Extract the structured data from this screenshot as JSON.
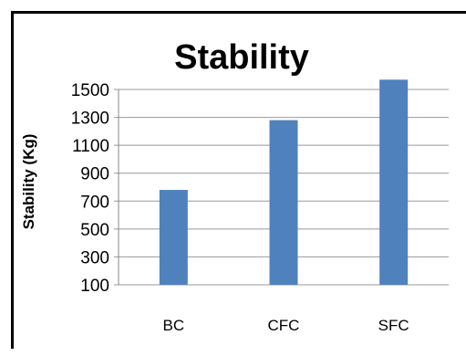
{
  "chart_data": {
    "type": "bar",
    "title": "Stability",
    "xlabel": "",
    "ylabel": "Stability (Kg)",
    "categories": [
      "BC",
      "CFC",
      "SFC"
    ],
    "values": [
      780,
      1280,
      1570
    ],
    "ylim": [
      100,
      1500
    ],
    "yticks": [
      1500,
      1300,
      1100,
      900,
      700,
      500,
      300,
      100
    ],
    "grid": true,
    "legend": "none",
    "bar_color": "#4f81bd"
  }
}
